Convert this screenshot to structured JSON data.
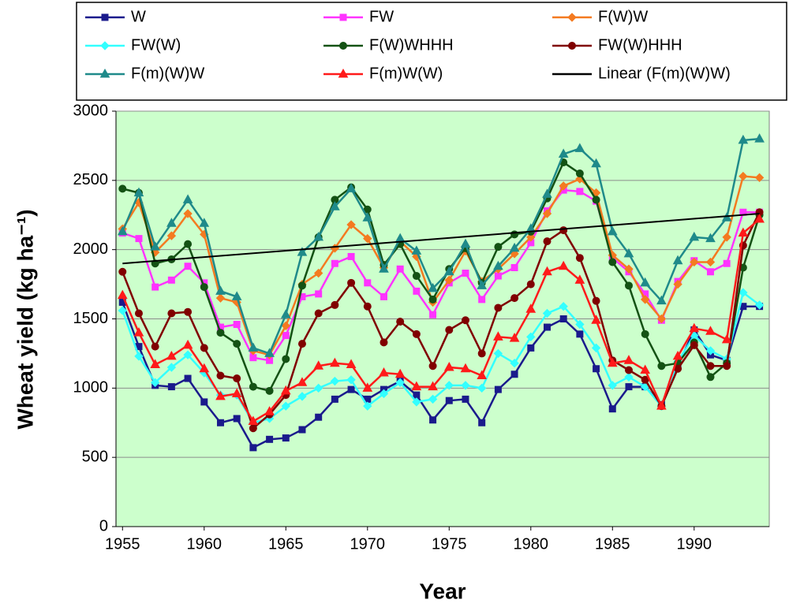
{
  "chart_data": {
    "type": "line",
    "x_label": "Year",
    "y_label": "Wheat yield (kg ha⁻¹)",
    "xlim": [
      1954.6,
      1994.6
    ],
    "ylim": [
      0,
      3000
    ],
    "xticks": [
      1955,
      1960,
      1965,
      1970,
      1975,
      1980,
      1985,
      1990
    ],
    "yticks": [
      0,
      500,
      1000,
      1500,
      2000,
      2500,
      3000
    ],
    "grid": true,
    "background": "#ccffcc",
    "x": [
      1955,
      1956,
      1957,
      1958,
      1959,
      1960,
      1961,
      1962,
      1963,
      1964,
      1965,
      1966,
      1967,
      1968,
      1969,
      1970,
      1971,
      1972,
      1973,
      1974,
      1975,
      1976,
      1977,
      1978,
      1979,
      1980,
      1981,
      1982,
      1983,
      1984,
      1985,
      1986,
      1987,
      1988,
      1989,
      1990,
      1991,
      1992,
      1993,
      1994
    ],
    "series": [
      {
        "name": "W",
        "color": "#1a1a8c",
        "marker": "square",
        "values": [
          1620,
          1300,
          1020,
          1010,
          1070,
          900,
          750,
          780,
          570,
          630,
          640,
          700,
          790,
          920,
          990,
          920,
          990,
          1050,
          950,
          770,
          910,
          920,
          750,
          990,
          1100,
          1290,
          1440,
          1500,
          1390,
          1140,
          850,
          1010,
          1010,
          880,
          1160,
          1420,
          1240,
          1200,
          1590,
          1590
        ]
      },
      {
        "name": "FW",
        "color": "#ff33ff",
        "marker": "square",
        "values": [
          2120,
          2080,
          1730,
          1780,
          1880,
          1760,
          1440,
          1460,
          1220,
          1200,
          1380,
          1660,
          1680,
          1900,
          1950,
          1760,
          1660,
          1860,
          1700,
          1530,
          1760,
          1830,
          1640,
          1810,
          1870,
          2050,
          2280,
          2430,
          2420,
          2350,
          1940,
          1840,
          1680,
          1490,
          1770,
          1920,
          1840,
          1900,
          2270,
          2270
        ]
      },
      {
        "name": "F(W)W",
        "color": "#f47a20",
        "marker": "diamond",
        "values": [
          2150,
          2340,
          1980,
          2100,
          2260,
          2110,
          1650,
          1620,
          1270,
          1240,
          1450,
          1750,
          1830,
          2010,
          2180,
          2080,
          1870,
          2060,
          1950,
          1620,
          1780,
          1990,
          1770,
          1860,
          1970,
          2090,
          2260,
          2460,
          2510,
          2410,
          1960,
          1860,
          1640,
          1500,
          1750,
          1910,
          1910,
          2090,
          2530,
          2520
        ]
      },
      {
        "name": "FW(W)",
        "color": "#33ffff",
        "marker": "diamond",
        "values": [
          1560,
          1230,
          1040,
          1150,
          1240,
          1110,
          950,
          950,
          750,
          780,
          870,
          940,
          1000,
          1050,
          1060,
          870,
          960,
          1040,
          900,
          920,
          1020,
          1020,
          1000,
          1250,
          1180,
          1370,
          1540,
          1590,
          1460,
          1290,
          1020,
          1080,
          1010,
          870,
          1190,
          1380,
          1270,
          1210,
          1690,
          1600
        ]
      },
      {
        "name": "F(W)WHHH",
        "color": "#145214",
        "marker": "circle",
        "values": [
          2440,
          2410,
          1900,
          1930,
          2040,
          1730,
          1400,
          1320,
          1010,
          980,
          1210,
          1740,
          2090,
          2360,
          2450,
          2290,
          1890,
          2040,
          1810,
          1640,
          1860,
          2010,
          1760,
          2020,
          2110,
          2130,
          2370,
          2630,
          2550,
          2360,
          1910,
          1740,
          1390,
          1160,
          1180,
          1330,
          1080,
          1180,
          1870,
          2250
        ]
      },
      {
        "name": "FW(W)HHH",
        "color": "#800000",
        "marker": "circle",
        "values": [
          1840,
          1540,
          1300,
          1540,
          1550,
          1290,
          1090,
          1070,
          710,
          810,
          950,
          1320,
          1540,
          1600,
          1760,
          1590,
          1330,
          1480,
          1390,
          1160,
          1420,
          1490,
          1250,
          1580,
          1650,
          1750,
          2060,
          2140,
          1940,
          1630,
          1200,
          1130,
          1060,
          870,
          1140,
          1310,
          1160,
          1160,
          2030,
          2270
        ]
      },
      {
        "name": "F(m)(W)W",
        "color": "#1f8a8a",
        "marker": "triangle",
        "values": [
          2130,
          2410,
          2020,
          2190,
          2360,
          2190,
          1700,
          1660,
          1290,
          1250,
          1530,
          1980,
          2090,
          2310,
          2440,
          2230,
          1860,
          2080,
          1990,
          1720,
          1840,
          2040,
          1740,
          1880,
          2010,
          2150,
          2400,
          2690,
          2730,
          2620,
          2130,
          1970,
          1760,
          1630,
          1920,
          2090,
          2080,
          2230,
          2790,
          2800
        ]
      },
      {
        "name": "F(m)W(W)",
        "color": "#ff1a1a",
        "marker": "triangle",
        "values": [
          1670,
          1400,
          1170,
          1230,
          1310,
          1140,
          940,
          960,
          760,
          830,
          980,
          1040,
          1160,
          1180,
          1170,
          1000,
          1110,
          1100,
          1010,
          1010,
          1150,
          1140,
          1090,
          1370,
          1360,
          1570,
          1840,
          1880,
          1780,
          1490,
          1180,
          1200,
          1130,
          870,
          1230,
          1430,
          1410,
          1350,
          2120,
          2220
        ]
      },
      {
        "name": "Linear (F(m)(W)W)",
        "color": "#000000",
        "marker": "none",
        "x": [
          1955,
          1994
        ],
        "values": [
          1900,
          2260
        ]
      }
    ]
  }
}
